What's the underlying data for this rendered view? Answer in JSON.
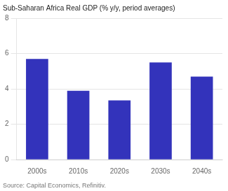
{
  "chart_data": {
    "type": "bar",
    "title": "Sub-Saharan Africa Real GDP (% y/y, period averages)",
    "categories": [
      "2000s",
      "2010s",
      "2020s",
      "2030s",
      "2040s"
    ],
    "values": [
      5.7,
      3.9,
      3.35,
      5.5,
      4.7
    ],
    "color": "#3333bb",
    "ylim": [
      0,
      8
    ],
    "yticks": [
      0,
      2,
      4,
      6,
      8
    ],
    "grid": true,
    "annotations": [
      "Source: Capital Economics, Refinitiv."
    ]
  }
}
